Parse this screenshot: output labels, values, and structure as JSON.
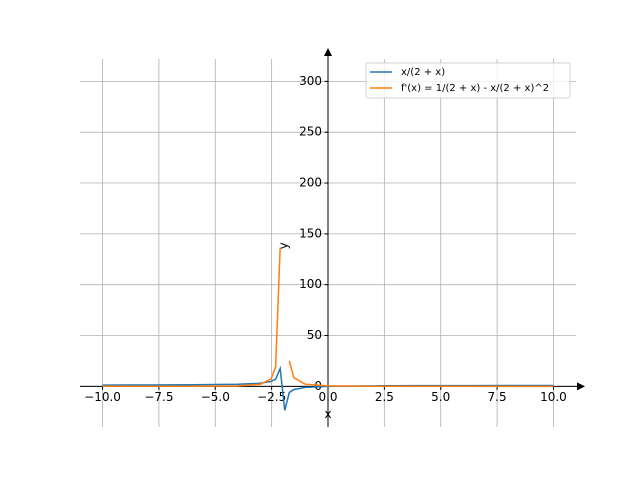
{
  "chart_data": {
    "type": "line",
    "xlabel": "x",
    "ylabel": "y",
    "x": [
      -10,
      -8,
      -6,
      -4,
      -3,
      -2.525,
      -2.323,
      -2.121,
      -1.919,
      -1.717,
      -1.515,
      -1,
      0,
      2,
      4,
      6,
      8,
      10
    ],
    "series": [
      {
        "name": "x/(2 + x)",
        "color": "#1f77b4",
        "values": [
          1.25,
          1.333,
          1.5,
          2,
          3,
          4.81,
          7.19,
          17.53,
          -23.75,
          -6.07,
          -3.12,
          -1,
          0,
          0.5,
          0.667,
          0.75,
          0.8,
          0.833
        ]
      },
      {
        "name": "f'(x) = 1/(2 + x) - x/(2 + x)^2",
        "color": "#ff7f0e",
        "values": [
          0.031,
          0.056,
          0.125,
          0.5,
          2,
          7.26,
          19.2,
          136.6,
          null,
          25.0,
          8.5,
          2,
          0.5,
          0.125,
          0.056,
          0.031,
          0.021,
          0.014
        ]
      }
    ],
    "xlim": [
      -11,
      11
    ],
    "ylim": [
      -40,
      322
    ],
    "xticks": [
      {
        "value": -10,
        "label": "−10.0"
      },
      {
        "value": -7.5,
        "label": "−7.5"
      },
      {
        "value": -5,
        "label": "−5.0"
      },
      {
        "value": -2.5,
        "label": "−2.5"
      },
      {
        "value": 0,
        "label": "0.0"
      },
      {
        "value": 2.5,
        "label": "2.5"
      },
      {
        "value": 5,
        "label": "5.0"
      },
      {
        "value": 7.5,
        "label": "7.5"
      },
      {
        "value": 10,
        "label": "10.0"
      }
    ],
    "yticks": [
      0,
      50,
      100,
      150,
      200,
      250,
      300
    ],
    "grid": true,
    "legend": "upper right"
  }
}
